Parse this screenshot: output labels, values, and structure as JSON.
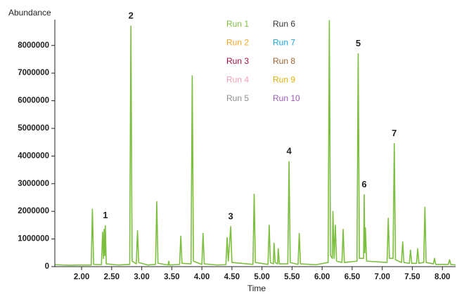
{
  "chart_data": {
    "type": "line",
    "y_label": "Abundance",
    "x_label": "Time",
    "xlim": [
      1.555,
      8.22
    ],
    "ylim": [
      0,
      8900000
    ],
    "yticks": [
      0,
      1000000,
      2000000,
      3000000,
      4000000,
      5000000,
      6000000,
      7000000,
      8000000
    ],
    "xticks": [
      {
        "value": 2,
        "label": "2.00"
      },
      {
        "value": 2.5,
        "label": "2.50"
      },
      {
        "value": 3,
        "label": "3.00"
      },
      {
        "value": 3.5,
        "label": "3.50"
      },
      {
        "value": 4,
        "label": "4.00"
      },
      {
        "value": 4.5,
        "label": "4.50"
      },
      {
        "value": 5,
        "label": "5.00"
      },
      {
        "value": 5.5,
        "label": "5.50"
      },
      {
        "value": 6,
        "label": "6.00"
      },
      {
        "value": 6.5,
        "label": "6.50"
      },
      {
        "value": 7,
        "label": "7.00"
      },
      {
        "value": 7.5,
        "label": "7.50"
      },
      {
        "value": 8,
        "label": "8.00"
      }
    ],
    "x": [
      1.56,
      1.8,
      1.95,
      2.16,
      2.18,
      2.2,
      2.33,
      2.35,
      2.365,
      2.375,
      2.385,
      2.395,
      2.41,
      2.6,
      2.8,
      2.82,
      2.84,
      2.91,
      2.93,
      2.95,
      3.1,
      3.23,
      3.25,
      3.27,
      3.44,
      3.45,
      3.46,
      3.63,
      3.65,
      3.67,
      3.82,
      3.84,
      3.86,
      4.0,
      4.02,
      4.04,
      4.25,
      4.4,
      4.42,
      4.44,
      4.48,
      4.5,
      4.85,
      4.87,
      4.89,
      5.1,
      5.12,
      5.14,
      5.19,
      5.2,
      5.22,
      5.26,
      5.27,
      5.29,
      5.43,
      5.45,
      5.47,
      5.6,
      5.62,
      5.64,
      5.9,
      6.1,
      6.12,
      6.14,
      6.17,
      6.18,
      6.2,
      6.22,
      6.24,
      6.33,
      6.35,
      6.37,
      6.58,
      6.6,
      6.62,
      6.69,
      6.7,
      6.71,
      6.72,
      6.74,
      7.08,
      7.1,
      7.12,
      7.18,
      7.2,
      7.22,
      7.32,
      7.34,
      7.36,
      7.45,
      7.47,
      7.49,
      7.57,
      7.59,
      7.61,
      7.69,
      7.71,
      7.73,
      7.85,
      7.87,
      7.89,
      8.1,
      8.12,
      8.14,
      8.22
    ],
    "series": [
      {
        "name": "Run 1",
        "color": "#7cbf3f",
        "values": [
          70000,
          50000,
          60000,
          60000,
          2080000,
          80000,
          70000,
          1250000,
          300000,
          1350000,
          400000,
          1480000,
          100000,
          60000,
          80000,
          8700000,
          200000,
          100000,
          1300000,
          150000,
          60000,
          80000,
          2350000,
          120000,
          60000,
          200000,
          60000,
          80000,
          1100000,
          120000,
          100000,
          6900000,
          200000,
          80000,
          1200000,
          100000,
          60000,
          70000,
          1050000,
          200000,
          1450000,
          150000,
          80000,
          2620000,
          150000,
          80000,
          1500000,
          150000,
          100000,
          850000,
          150000,
          100000,
          650000,
          100000,
          100000,
          3800000,
          150000,
          80000,
          1200000,
          100000,
          70000,
          150000,
          8900000,
          400000,
          300000,
          2000000,
          300000,
          1500000,
          200000,
          150000,
          1350000,
          150000,
          200000,
          7700000,
          300000,
          300000,
          2600000,
          500000,
          1400000,
          200000,
          150000,
          1750000,
          300000,
          300000,
          4450000,
          250000,
          150000,
          900000,
          150000,
          120000,
          600000,
          120000,
          120000,
          650000,
          120000,
          150000,
          2150000,
          150000,
          100000,
          300000,
          80000,
          80000,
          250000,
          80000,
          60000
        ]
      },
      {
        "name": "Run 2",
        "color": "#f5a623"
      },
      {
        "name": "Run 3",
        "color": "#a0103a"
      },
      {
        "name": "Run 4",
        "color": "#f2a0b4"
      },
      {
        "name": "Run 5",
        "color": "#8c8c8c"
      },
      {
        "name": "Run 6",
        "color": "#333333"
      },
      {
        "name": "Run 7",
        "color": "#1aa5d8"
      },
      {
        "name": "Run 8",
        "color": "#a0622d"
      },
      {
        "name": "Run 9",
        "color": "#e0b000"
      },
      {
        "name": "Run 10",
        "color": "#9b59b6"
      }
    ],
    "annotations": [
      {
        "text": "1",
        "x": 2.395
      },
      {
        "text": "2",
        "x": 2.82
      },
      {
        "text": "3",
        "x": 4.48
      },
      {
        "text": "4",
        "x": 5.45
      },
      {
        "text": "5",
        "x": 6.6
      },
      {
        "text": "6",
        "x": 6.7
      },
      {
        "text": "7",
        "x": 7.2
      }
    ]
  }
}
